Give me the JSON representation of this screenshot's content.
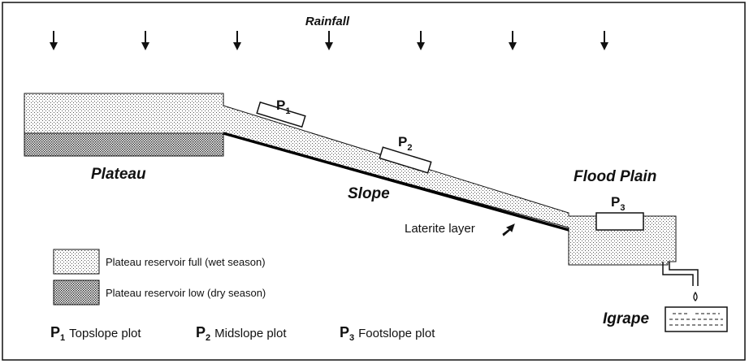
{
  "title": "Rainfall",
  "regions": {
    "plateau": "Plateau",
    "slope": "Slope",
    "flood_plain": "Flood Plain",
    "igrape": "Igrape"
  },
  "laterite_label": "Laterite layer",
  "plots": [
    {
      "letter": "P",
      "sub": "1",
      "name": "Topslope plot"
    },
    {
      "letter": "P",
      "sub": "2",
      "name": "Midslope plot"
    },
    {
      "letter": "P",
      "sub": "3",
      "name": "Footslope plot"
    }
  ],
  "legend": {
    "wet": "Plateau reservoir full (wet season)",
    "dry": "Plateau reservoir low (dry season)"
  },
  "rainfall_arrow_count": 7
}
